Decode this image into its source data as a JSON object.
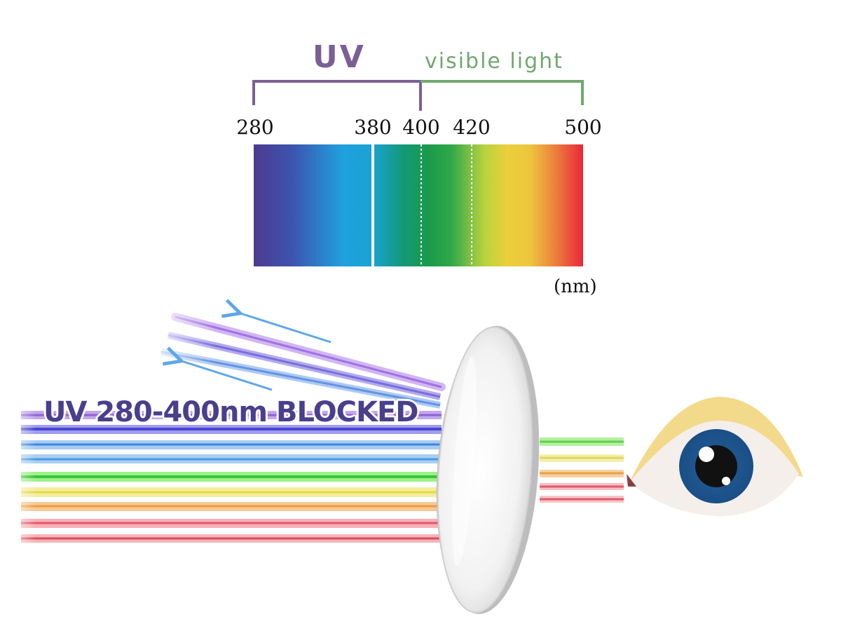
{
  "header": {
    "uv_label": "UV",
    "visible_label": "visible light"
  },
  "spectrum": {
    "ticks": [
      {
        "label": "280",
        "value": 280
      },
      {
        "label": "380",
        "value": 380
      },
      {
        "label": "400",
        "value": 400
      },
      {
        "label": "420",
        "value": 420
      },
      {
        "label": "500",
        "value": 500
      }
    ],
    "unit_label": "(nm)",
    "range_nm": [
      280,
      500
    ]
  },
  "blocked_label": "UV 280-400nm BLOCKED",
  "colors": {
    "uv": "#7a5f95",
    "visible": "#6fa86f",
    "text": "#111111",
    "blocked_text": "#4a3f8c",
    "eye_iris": "#1b5f96",
    "eyelid": "#f3d98a"
  },
  "icons": [
    "lens-icon",
    "eye-icon",
    "reflect-arrow-icon"
  ]
}
